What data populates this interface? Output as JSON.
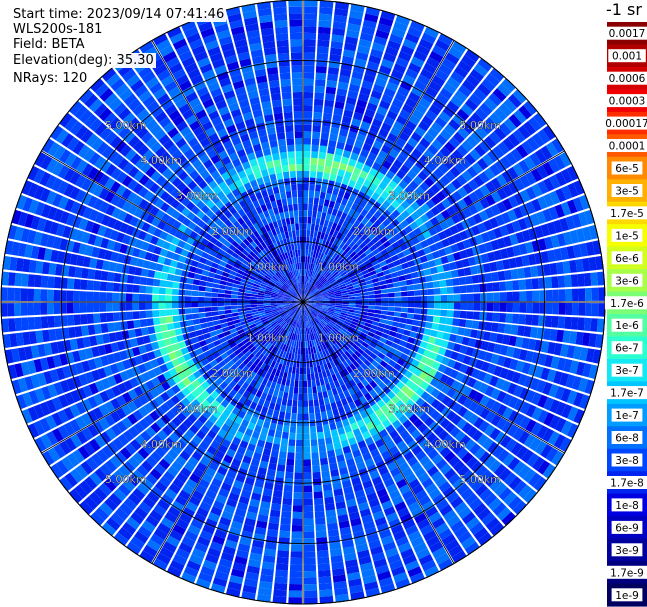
{
  "info": {
    "start_time": "Start time: 2023/09/14 07:41:46",
    "device": "WLS200s-181",
    "field": "Field: BETA",
    "elevation": "Elevation(deg): 35.30",
    "nrays": "NRays: 120"
  },
  "chart_data": {
    "type": "heatmap",
    "projection": "polar",
    "field": "BETA",
    "n_rays": 120,
    "elevation_deg": 35.3,
    "range_rings_km": [
      1.0,
      2.0,
      3.0,
      4.0,
      5.0
    ],
    "range_labels": [
      "1.00km",
      "2.00km",
      "3.00km",
      "4.00km",
      "5.00km"
    ],
    "max_range_km": 5.0,
    "spoke_every_deg": 30,
    "colorbar": {
      "title": "-1 sr",
      "scale": "log",
      "range": [
        1e-09,
        0.0017
      ],
      "labels": [
        "0.0017",
        "0.001",
        "0.0006",
        "0.0003",
        "0.00017",
        "0.0001",
        "6e-5",
        "3e-5",
        "1.7e-5",
        "1e-5",
        "6e-6",
        "3e-6",
        "1.7e-6",
        "1e-6",
        "6e-7",
        "3e-7",
        "1.7e-7",
        "1e-7",
        "6e-8",
        "3e-8",
        "1.7e-8",
        "1e-8",
        "6e-9",
        "3e-9",
        "1.7e-9",
        "1e-9"
      ],
      "colors": [
        "#8a0000",
        "#b00000",
        "#d40000",
        "#f20000",
        "#ff2d00",
        "#ff5a00",
        "#ff8a00",
        "#ffb000",
        "#ffd800",
        "#f6ff00",
        "#d2ff1c",
        "#a8ff48",
        "#7cff74",
        "#54ffa2",
        "#2cffd0",
        "#14e8f2",
        "#00c6ff",
        "#009cff",
        "#0070ff",
        "#0046ff",
        "#0024f0",
        "#0000e0",
        "#0000c0",
        "#00009e",
        "#00007e",
        "#000060"
      ]
    },
    "features": [
      {
        "desc": "higher backscatter annulus",
        "range_km_min": 2.0,
        "range_km_max": 2.6,
        "level": "1.7e-7 to 1e-6"
      }
    ]
  }
}
